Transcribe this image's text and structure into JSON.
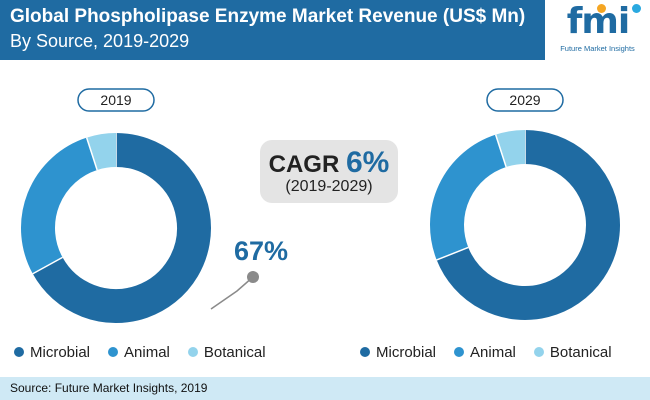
{
  "header": {
    "title": "Global Phospholipase Enzyme Market Revenue (US$ Mn)",
    "subtitle": "By Source, 2019-2029"
  },
  "logo": {
    "letters": "fmi",
    "caption": "Future Market Insights"
  },
  "cagr": {
    "label": "CAGR",
    "value": "6%",
    "period": "(2019-2029)"
  },
  "callout": {
    "text": "67%"
  },
  "colors": {
    "Microbial": "#1f6ba2",
    "Animal": "#2e93cf",
    "Botanical": "#93d3ec",
    "header": "#1f6ba2",
    "footer": "#cfe9f5"
  },
  "chart_data": [
    {
      "type": "pie",
      "subtype": "donut",
      "title": "2019",
      "categories": [
        "Microbial",
        "Animal",
        "Botanical"
      ],
      "values": [
        67,
        28,
        5
      ]
    },
    {
      "type": "pie",
      "subtype": "donut",
      "title": "2029",
      "categories": [
        "Microbial",
        "Animal",
        "Botanical"
      ],
      "values": [
        69,
        26,
        5
      ]
    }
  ],
  "legend": {
    "items": [
      "Microbial",
      "Animal",
      "Botanical"
    ]
  },
  "footer": {
    "source": "Source: Future Market Insights, 2019"
  }
}
